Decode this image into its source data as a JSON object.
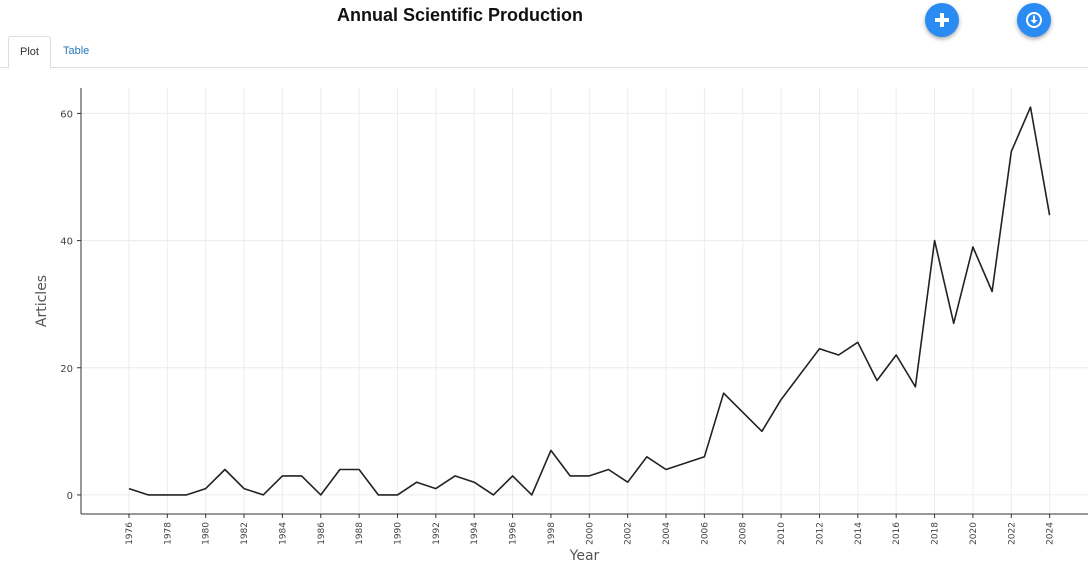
{
  "header": {
    "title": "Annual Scientific Production",
    "add_icon": "plus-icon",
    "download_icon": "download-icon",
    "accent_color": "#2a8bf2"
  },
  "tabs": [
    {
      "label": "Plot",
      "active": true
    },
    {
      "label": "Table",
      "active": false
    }
  ],
  "chart_data": {
    "type": "line",
    "title": "",
    "xlabel": "Year",
    "ylabel": "Articles",
    "x": [
      1976,
      1977,
      1978,
      1979,
      1980,
      1981,
      1982,
      1983,
      1984,
      1985,
      1986,
      1987,
      1988,
      1989,
      1990,
      1991,
      1992,
      1993,
      1994,
      1995,
      1996,
      1997,
      1998,
      1999,
      2000,
      2001,
      2002,
      2003,
      2004,
      2006,
      2007,
      2009,
      2010,
      2012,
      2013,
      2014,
      2015,
      2016,
      2017,
      2018,
      2019,
      2020,
      2021,
      2022,
      2023,
      2024
    ],
    "y": [
      1,
      0,
      0,
      0,
      1,
      4,
      1,
      0,
      3,
      3,
      0,
      4,
      4,
      0,
      0,
      2,
      1,
      3,
      2,
      0,
      3,
      0,
      7,
      3,
      3,
      4,
      2,
      6,
      4,
      6,
      16,
      10,
      15,
      23,
      22,
      24,
      18,
      22,
      17,
      40,
      27,
      39,
      32,
      54,
      61,
      44
    ],
    "xlim": [
      1973.5,
      2026
    ],
    "ylim": [
      -3,
      64
    ],
    "x_ticks": [
      1976,
      1978,
      1980,
      1982,
      1984,
      1986,
      1988,
      1990,
      1992,
      1994,
      1996,
      1998,
      2000,
      2002,
      2004,
      2006,
      2008,
      2010,
      2012,
      2014,
      2016,
      2018,
      2020,
      2022,
      2024
    ],
    "y_ticks": [
      0,
      20,
      40,
      60
    ],
    "grid": true,
    "line_color": "#222222"
  }
}
